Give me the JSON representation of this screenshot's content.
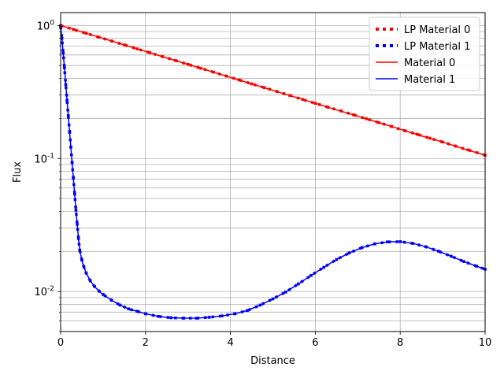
{
  "chart_data": {
    "type": "line",
    "title": "",
    "xlabel": "Distance",
    "ylabel": "Flux",
    "xlim": [
      0,
      10
    ],
    "ylim": [
      0.005,
      1.25
    ],
    "yscale": "log",
    "grid": true,
    "grid_minor": true,
    "legend_position": "top-right",
    "x_ticks": [
      0,
      2,
      4,
      6,
      8,
      10
    ],
    "x_tick_labels": [
      "0",
      "2",
      "4",
      "6",
      "8",
      "10"
    ],
    "y_ticks": [
      0.01,
      0.1,
      1
    ],
    "y_tick_labels": [
      "10^-2",
      "10^-1",
      "10^0"
    ],
    "series": [
      {
        "name": "LP Material 0",
        "color": "#ff0000",
        "style": "dotted",
        "x": [
          0.0,
          0.3,
          0.6,
          0.9,
          1.2,
          1.5,
          1.8,
          2.1,
          2.4,
          2.7,
          3.0,
          3.3,
          3.6,
          3.9,
          4.2,
          4.5,
          4.8,
          5.1,
          5.4,
          5.7,
          6.0,
          6.3,
          6.6,
          6.9,
          7.2,
          7.5,
          7.8,
          8.1,
          8.4,
          8.7,
          9.0,
          9.3,
          9.6,
          10.0
        ],
        "y": [
          1.0,
          0.935,
          0.874,
          0.817,
          0.764,
          0.714,
          0.668,
          0.624,
          0.584,
          0.546,
          0.51,
          0.477,
          0.446,
          0.417,
          0.39,
          0.364,
          0.341,
          0.319,
          0.298,
          0.278,
          0.26,
          0.243,
          0.228,
          0.213,
          0.199,
          0.186,
          0.174,
          0.162,
          0.152,
          0.142,
          0.133,
          0.124,
          0.116,
          0.106
        ]
      },
      {
        "name": "LP Material 1",
        "color": "#0000ff",
        "style": "dotted",
        "x": [
          0.0,
          0.03,
          0.06,
          0.09,
          0.12,
          0.15,
          0.18,
          0.21,
          0.24,
          0.27,
          0.3,
          0.33,
          0.36,
          0.39,
          0.42,
          0.45,
          0.5,
          0.55,
          0.6,
          0.7,
          0.8,
          0.9,
          1.0,
          1.2,
          1.4,
          1.6,
          1.8,
          2.0,
          2.3,
          2.6,
          2.9,
          3.2,
          3.5,
          3.8,
          4.1,
          4.4,
          4.7,
          5.0,
          5.3,
          5.6,
          5.9,
          6.2,
          6.5,
          6.8,
          7.1,
          7.4,
          7.7,
          8.0,
          8.3,
          8.6,
          8.9,
          9.2,
          9.5,
          9.8,
          10.0
        ],
        "y": [
          0.98,
          0.8,
          0.62,
          0.48,
          0.36,
          0.275,
          0.21,
          0.16,
          0.122,
          0.093,
          0.071,
          0.054,
          0.041,
          0.032,
          0.025,
          0.0205,
          0.0172,
          0.0152,
          0.0138,
          0.012,
          0.0109,
          0.0101,
          0.0095,
          0.0086,
          0.0079,
          0.0074,
          0.0071,
          0.0068,
          0.0065,
          0.00635,
          0.0063,
          0.0063,
          0.0064,
          0.00655,
          0.0068,
          0.0072,
          0.0079,
          0.0088,
          0.0099,
          0.0114,
          0.0132,
          0.0152,
          0.0174,
          0.0195,
          0.0214,
          0.0228,
          0.0236,
          0.0237,
          0.023,
          0.0217,
          0.0201,
          0.0184,
          0.0168,
          0.0155,
          0.0147
        ]
      },
      {
        "name": "Material 0",
        "color": "#ff0000",
        "style": "solid",
        "x": [
          0.0,
          0.5,
          1.0,
          1.5,
          2.0,
          2.5,
          3.0,
          3.5,
          4.0,
          4.5,
          5.0,
          5.5,
          6.0,
          6.5,
          7.0,
          7.5,
          8.0,
          8.5,
          9.0,
          9.5,
          10.0
        ],
        "y": [
          1.0,
          0.894,
          0.8,
          0.714,
          0.638,
          0.57,
          0.51,
          0.456,
          0.407,
          0.364,
          0.325,
          0.291,
          0.26,
          0.232,
          0.208,
          0.186,
          0.166,
          0.148,
          0.133,
          0.118,
          0.106
        ]
      },
      {
        "name": "Material 1",
        "color": "#0000ff",
        "style": "solid",
        "x": [
          0.0,
          0.03,
          0.06,
          0.09,
          0.12,
          0.15,
          0.18,
          0.21,
          0.24,
          0.27,
          0.3,
          0.33,
          0.36,
          0.39,
          0.42,
          0.45,
          0.5,
          0.55,
          0.6,
          0.7,
          0.8,
          0.9,
          1.0,
          1.2,
          1.4,
          1.6,
          1.8,
          2.0,
          2.3,
          2.6,
          2.9,
          3.2,
          3.5,
          3.8,
          4.1,
          4.4,
          4.7,
          5.0,
          5.3,
          5.6,
          5.9,
          6.2,
          6.5,
          6.8,
          7.1,
          7.4,
          7.7,
          8.0,
          8.3,
          8.6,
          8.9,
          9.2,
          9.5,
          9.8,
          10.0
        ],
        "y": [
          0.98,
          0.8,
          0.62,
          0.48,
          0.36,
          0.275,
          0.21,
          0.16,
          0.122,
          0.093,
          0.071,
          0.054,
          0.041,
          0.032,
          0.025,
          0.0205,
          0.0172,
          0.0152,
          0.0138,
          0.012,
          0.0109,
          0.0101,
          0.0095,
          0.0086,
          0.0079,
          0.0074,
          0.0071,
          0.0068,
          0.0065,
          0.00635,
          0.0063,
          0.0063,
          0.0064,
          0.00655,
          0.0068,
          0.0072,
          0.0079,
          0.0088,
          0.0099,
          0.0114,
          0.0132,
          0.0152,
          0.0174,
          0.0195,
          0.0214,
          0.0228,
          0.0236,
          0.0237,
          0.023,
          0.0217,
          0.0201,
          0.0184,
          0.0168,
          0.0155,
          0.0147
        ]
      }
    ]
  }
}
